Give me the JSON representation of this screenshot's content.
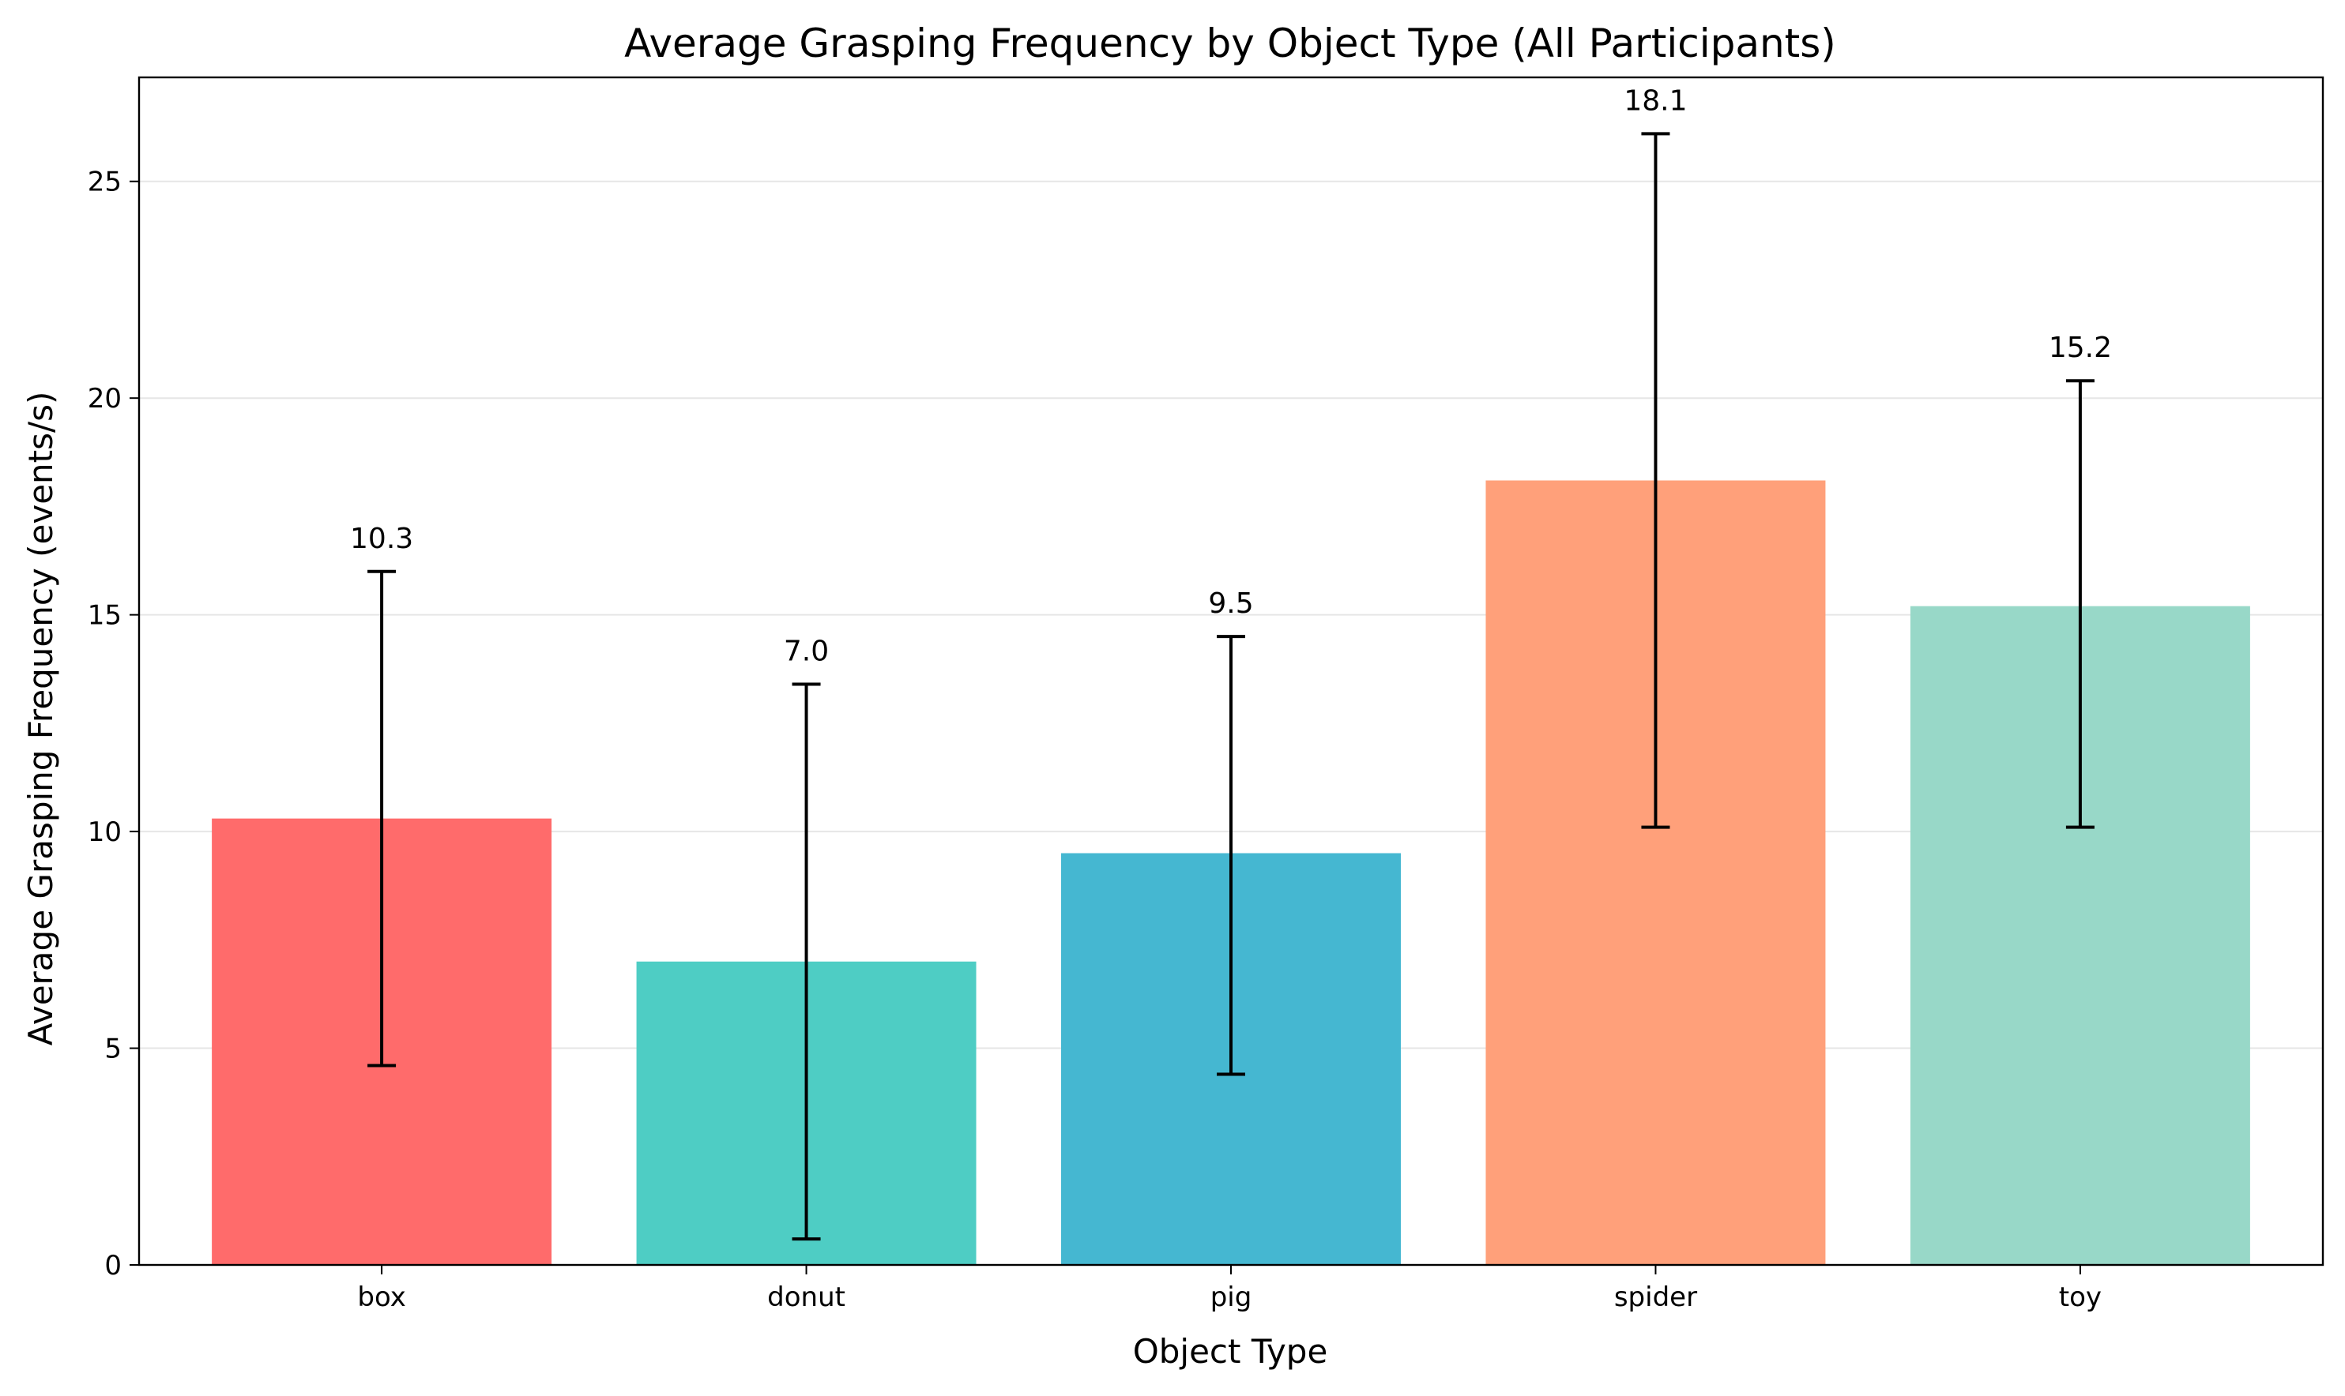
{
  "chart_data": {
    "type": "bar",
    "title": "Average Grasping Frequency by Object Type (All Participants)",
    "xlabel": "Object Type",
    "ylabel": "Average Grasping Frequency (events/s)",
    "categories": [
      "box",
      "donut",
      "pig",
      "spider",
      "toy"
    ],
    "values": [
      10.3,
      7.0,
      9.5,
      18.1,
      15.2
    ],
    "value_labels": [
      "10.3",
      "7.0",
      "9.5",
      "18.1",
      "15.2"
    ],
    "error_low": [
      4.6,
      0.6,
      4.4,
      10.1,
      10.1
    ],
    "error_high": [
      16.0,
      13.4,
      14.5,
      26.1,
      20.4
    ],
    "colors": [
      "#ff6b6b",
      "#4ecdc4",
      "#45b7d1",
      "#ffa07a",
      "#98d8c8"
    ],
    "ylim": [
      0,
      27.4
    ],
    "yticks": [
      0,
      5,
      10,
      15,
      20,
      25
    ],
    "ytick_labels": [
      "0",
      "5",
      "10",
      "15",
      "20",
      "25"
    ],
    "grid": "horizontal",
    "legend": "none"
  }
}
